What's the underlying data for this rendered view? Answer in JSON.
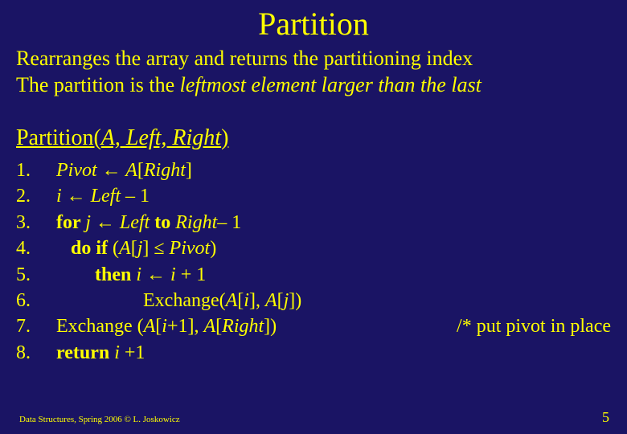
{
  "colors": {
    "background": "#1a1464",
    "text": "#ffff00"
  },
  "typography": {
    "family": "Times New Roman",
    "title_size_pt": 40,
    "body_size_pt": 26,
    "func_size_pt": 28,
    "code_size_pt": 24,
    "footer_size_pt": 11,
    "pagenum_size_pt": 18
  },
  "title": "Partition",
  "desc_line1_a": "Rearranges the array and returns the partitioning index",
  "desc_line2_a": "The partition is the ",
  "desc_line2_b": "leftmost element larger than the last",
  "func": {
    "name": "Partition(",
    "arg": "A, Left, Right",
    "close": ")"
  },
  "code": {
    "n1": "1.",
    "n2": "2.",
    "n3": "3.",
    "n4": "4.",
    "n5": "5.",
    "n6": "6.",
    "n7": "7.",
    "n8": "8.",
    "l1_a": "Pivot ",
    "l1_b": " A",
    "l1_c": "[",
    "l1_d": "Right",
    "l1_e": "]",
    "l2_a": "i ",
    "l2_b": " Left ",
    "l2_c": "– 1",
    "l3_a": "for ",
    "l3_b": "j ",
    "l3_c": " Left ",
    "l3_d": "to ",
    "l3_e": "Right",
    "l3_f": "– 1",
    "l4_a": "   do if ",
    "l4_b": "(",
    "l4_c": "A",
    "l4_d": "[",
    "l4_e": "j",
    "l4_f": "] ≤ ",
    "l4_g": "Pivot",
    "l4_h": ")",
    "l5_a": "        then ",
    "l5_b": "i ",
    "l5_c": " i ",
    "l5_d": "+ 1",
    "l6_a": "                  Exchange(",
    "l6_b": "A",
    "l6_c": "[",
    "l6_d": "i",
    "l6_e": "], ",
    "l6_f": "A",
    "l6_g": "[",
    "l6_h": "j",
    "l6_i": "])",
    "l7_a": "Exchange (",
    "l7_b": "A",
    "l7_c": "[",
    "l7_d": "i",
    "l7_e": "+1], ",
    "l7_f": "A",
    "l7_g": "[",
    "l7_h": "Right",
    "l7_i": "])",
    "l7_comment": "/* put pivot in place",
    "l8_a": "return ",
    "l8_b": "i ",
    "l8_c": "+1"
  },
  "arrow": "←",
  "footer": "Data Structures, Spring 2006 © L. Joskowicz",
  "pagenum": "5"
}
